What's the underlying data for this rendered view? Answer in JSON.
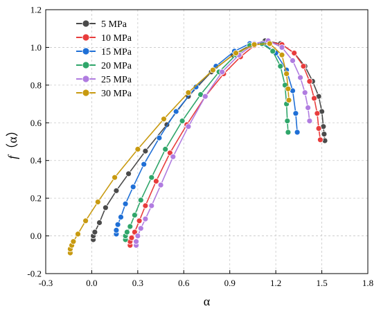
{
  "chart_data": {
    "type": "line",
    "xlabel": "α",
    "ylabel_italic": "f",
    "ylabel_rest": "（α）",
    "xlim": [
      -0.3,
      1.8
    ],
    "ylim": [
      -0.2,
      1.2
    ],
    "x_ticks": [
      "-0.3",
      "0.0",
      "0.3",
      "0.6",
      "0.9",
      "1.2",
      "1.5",
      "1.8"
    ],
    "y_ticks": [
      "-0.2",
      "0.0",
      "0.2",
      "0.4",
      "0.6",
      "0.8",
      "1.0",
      "1.2"
    ],
    "grid": true,
    "legend_position": "top-left",
    "series": [
      {
        "name": "5 MPa",
        "color": "#4a4a4a",
        "x": [
          0.01,
          0.01,
          0.02,
          0.05,
          0.09,
          0.16,
          0.24,
          0.35,
          0.49,
          0.63,
          0.78,
          0.92,
          1.03,
          1.13,
          1.23,
          1.32,
          1.39,
          1.44,
          1.48,
          1.5,
          1.51,
          1.515,
          1.52
        ],
        "y": [
          -0.02,
          0.0,
          0.02,
          0.07,
          0.15,
          0.24,
          0.33,
          0.45,
          0.59,
          0.74,
          0.87,
          0.96,
          1.01,
          1.035,
          1.02,
          0.97,
          0.9,
          0.82,
          0.74,
          0.66,
          0.58,
          0.54,
          0.505
        ]
      },
      {
        "name": "10 MPa",
        "color": "#e83c3c",
        "x": [
          0.25,
          0.25,
          0.26,
          0.28,
          0.31,
          0.35,
          0.42,
          0.51,
          0.62,
          0.74,
          0.86,
          0.97,
          1.06,
          1.15,
          1.24,
          1.32,
          1.38,
          1.42,
          1.45,
          1.47,
          1.48,
          1.49
        ],
        "y": [
          -0.05,
          -0.03,
          -0.01,
          0.02,
          0.08,
          0.16,
          0.29,
          0.44,
          0.59,
          0.74,
          0.86,
          0.95,
          1.01,
          1.03,
          1.015,
          0.97,
          0.9,
          0.82,
          0.73,
          0.65,
          0.57,
          0.51
        ]
      },
      {
        "name": "15 MPa",
        "color": "#1f6fd6",
        "x": [
          0.16,
          0.16,
          0.17,
          0.19,
          0.22,
          0.27,
          0.34,
          0.44,
          0.55,
          0.68,
          0.81,
          0.93,
          1.03,
          1.12,
          1.2,
          1.27,
          1.31,
          1.33,
          1.34
        ],
        "y": [
          0.01,
          0.03,
          0.06,
          0.1,
          0.17,
          0.26,
          0.38,
          0.52,
          0.66,
          0.79,
          0.9,
          0.98,
          1.02,
          1.02,
          0.97,
          0.88,
          0.77,
          0.65,
          0.55
        ]
      },
      {
        "name": "20 MPa",
        "color": "#2fa66a",
        "x": [
          0.22,
          0.22,
          0.23,
          0.25,
          0.28,
          0.32,
          0.39,
          0.48,
          0.59,
          0.71,
          0.83,
          0.94,
          1.03,
          1.11,
          1.18,
          1.23,
          1.26,
          1.27,
          1.275,
          1.28
        ],
        "y": [
          -0.02,
          0.0,
          0.02,
          0.05,
          0.11,
          0.19,
          0.31,
          0.46,
          0.61,
          0.75,
          0.87,
          0.96,
          1.01,
          1.02,
          0.98,
          0.9,
          0.8,
          0.7,
          0.61,
          0.55
        ]
      },
      {
        "name": "25 MPa",
        "color": "#b07ce0",
        "x": [
          0.29,
          0.29,
          0.3,
          0.32,
          0.35,
          0.39,
          0.45,
          0.53,
          0.63,
          0.74,
          0.85,
          0.96,
          1.06,
          1.15,
          1.24,
          1.31,
          1.36,
          1.39,
          1.41,
          1.42
        ],
        "y": [
          -0.05,
          -0.03,
          0.0,
          0.04,
          0.09,
          0.16,
          0.27,
          0.42,
          0.58,
          0.74,
          0.87,
          0.96,
          1.02,
          1.035,
          1.0,
          0.93,
          0.84,
          0.76,
          0.68,
          0.61
        ]
      },
      {
        "name": "30 MPa",
        "color": "#c89a10",
        "x": [
          -0.14,
          -0.14,
          -0.13,
          -0.12,
          -0.09,
          -0.04,
          0.04,
          0.15,
          0.3,
          0.47,
          0.63,
          0.79,
          0.94,
          1.06,
          1.16,
          1.24,
          1.27,
          1.28,
          1.285
        ],
        "y": [
          -0.09,
          -0.07,
          -0.05,
          -0.03,
          0.01,
          0.08,
          0.18,
          0.31,
          0.46,
          0.62,
          0.76,
          0.88,
          0.97,
          1.015,
          1.02,
          0.96,
          0.86,
          0.78,
          0.72
        ]
      }
    ]
  }
}
